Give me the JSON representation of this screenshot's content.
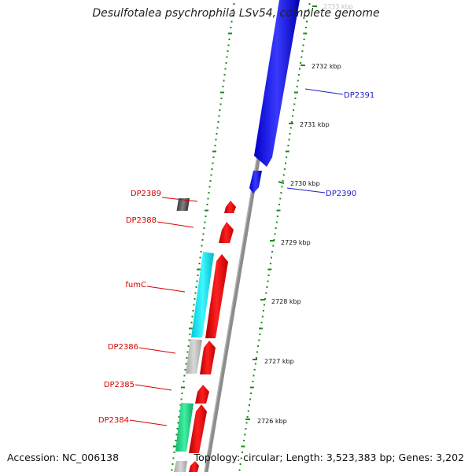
{
  "title": "Desulfotalea psychrophila LSv54, complete genome",
  "footer": {
    "accession": "Accession: NC_006138",
    "stats": "Topology: circular; Length: 3,523,383 bp; Genes: 3,202"
  },
  "colors": {
    "backbone": "#8c8c8c",
    "tick": "#1b8a1b",
    "forward_gene": "#2020e8",
    "reverse_gene": "#e81010",
    "label_forward": "#1d1dcc",
    "label_reverse": "#d80000"
  },
  "ticks": [
    "2733 kbp",
    "2732 kbp",
    "2731 kbp",
    "2730 kbp",
    "2729 kbp",
    "2728 kbp",
    "2727 kbp",
    "2726 kbp"
  ],
  "genes": [
    {
      "label": "DP2391",
      "strand": "forward"
    },
    {
      "label": "DP2390",
      "strand": "forward"
    },
    {
      "label": "DP2389",
      "strand": "reverse"
    },
    {
      "label": "DP2388",
      "strand": "reverse"
    },
    {
      "label": "fumC",
      "strand": "reverse"
    },
    {
      "label": "DP2386",
      "strand": "reverse"
    },
    {
      "label": "DP2385",
      "strand": "reverse"
    },
    {
      "label": "DP2384",
      "strand": "reverse"
    }
  ]
}
